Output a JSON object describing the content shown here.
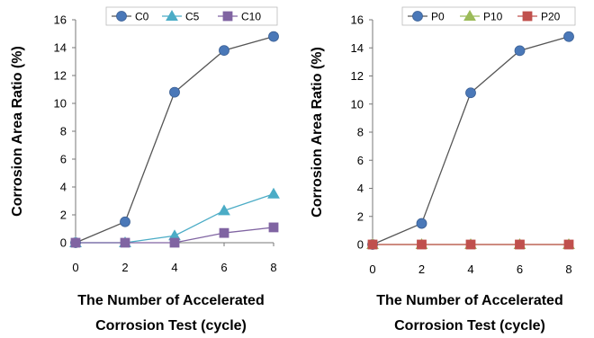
{
  "chart_data": [
    {
      "type": "line",
      "ylabel": "Corrosion Area Ratio (%)",
      "xlabel_line1": "The Number of  Accelerated",
      "xlabel_line2": "Corrosion Test (cycle)",
      "x": [
        0,
        2,
        4,
        6,
        8
      ],
      "xlim": [
        0,
        8
      ],
      "ylim": [
        0,
        16
      ],
      "xticks": [
        0,
        2,
        4,
        6,
        8
      ],
      "yticks": [
        0,
        2,
        4,
        6,
        8,
        10,
        12,
        14,
        16
      ],
      "grid": false,
      "legend_position": "top",
      "series": [
        {
          "name": "C0",
          "values": [
            0,
            1.5,
            10.8,
            13.8,
            14.8
          ],
          "color": "#4a78b8",
          "marker": "circle"
        },
        {
          "name": "C5",
          "values": [
            0,
            0,
            0.5,
            2.3,
            3.5
          ],
          "color": "#4bacc6",
          "marker": "triangle"
        },
        {
          "name": "C10",
          "values": [
            0,
            0,
            0,
            0.7,
            1.1
          ],
          "color": "#8064a2",
          "marker": "square"
        }
      ]
    },
    {
      "type": "line",
      "ylabel": "Corrosion Area Ratio (%)",
      "xlabel_line1": "The Number of  Accelerated",
      "xlabel_line2": "Corrosion Test (cycle)",
      "x": [
        0,
        2,
        4,
        6,
        8
      ],
      "xlim": [
        0,
        8
      ],
      "ylim": [
        0,
        16
      ],
      "xticks": [
        0,
        2,
        4,
        6,
        8
      ],
      "yticks": [
        0,
        2,
        4,
        6,
        8,
        10,
        12,
        14,
        16
      ],
      "grid": false,
      "legend_position": "top",
      "series": [
        {
          "name": "P0",
          "values": [
            0,
            1.5,
            10.8,
            13.8,
            14.8
          ],
          "color": "#4a78b8",
          "marker": "circle"
        },
        {
          "name": "P10",
          "values": [
            0,
            0,
            0,
            0,
            0
          ],
          "color": "#9bbb59",
          "marker": "triangle"
        },
        {
          "name": "P20",
          "values": [
            0,
            0,
            0,
            0,
            0
          ],
          "color": "#c0504d",
          "marker": "square"
        }
      ]
    }
  ]
}
